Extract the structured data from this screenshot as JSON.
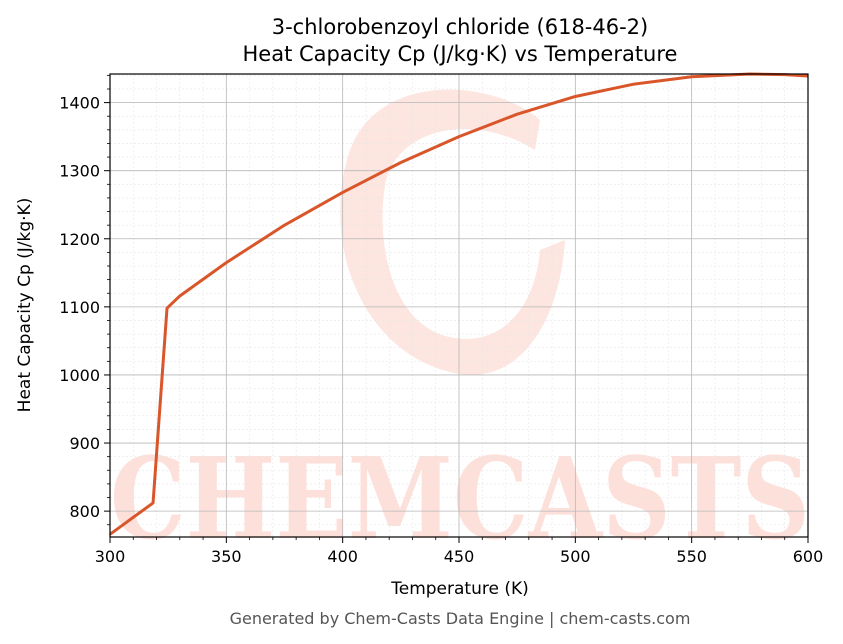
{
  "chart_data": {
    "type": "line",
    "title": "3-chlorobenzoyl chloride (618-46-2)",
    "subtitle": "Heat Capacity Cp (J/kg·K) vs Temperature",
    "xlabel": "Temperature (K)",
    "ylabel": "Heat Capacity Cp (J/kg·K)",
    "xlim": [
      300,
      600
    ],
    "ylim": [
      762,
      1442
    ],
    "xticks": [
      300,
      350,
      400,
      450,
      500,
      550,
      600
    ],
    "yticks": [
      800,
      900,
      1000,
      1100,
      1200,
      1300,
      1400
    ],
    "grid": true,
    "series": [
      {
        "color": "#d9562a",
        "x": [
          300,
          318.5,
          324.5,
          330,
          350,
          375,
          400,
          425,
          450,
          475,
          500,
          525,
          550,
          575,
          590,
          600
        ],
        "y": [
          766,
          812,
          1098,
          1116,
          1165,
          1220,
          1268,
          1312,
          1350,
          1383,
          1409,
          1427,
          1438,
          1442,
          1441,
          1439
        ]
      }
    ]
  },
  "watermark": {
    "text": "CHEMCASTS",
    "color": "#fde0da"
  },
  "footer": "Generated by Chem-Casts Data Engine | chem-casts.com"
}
